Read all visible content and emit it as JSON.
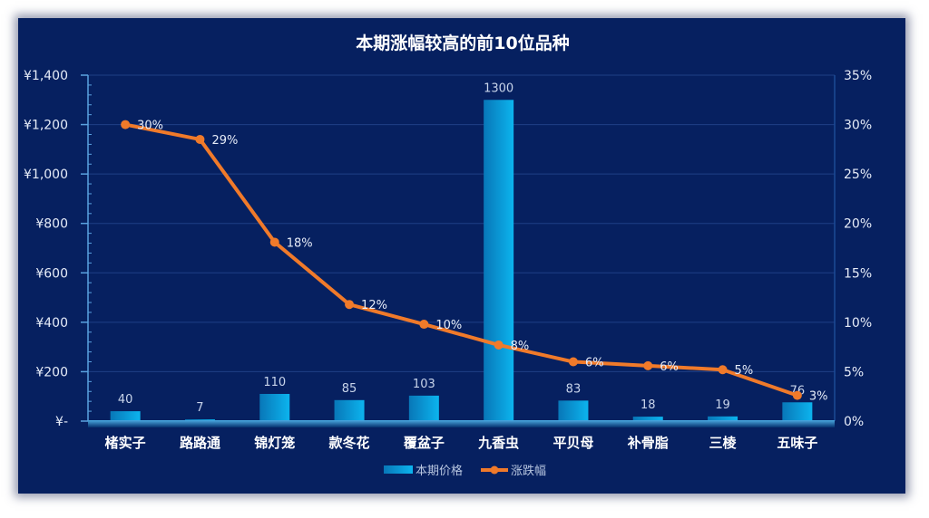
{
  "chart_data": {
    "type": "bar+line",
    "title": "本期涨幅较高的前10位品种",
    "categories": [
      "楮实子",
      "路路通",
      "锦灯笼",
      "款冬花",
      "覆盆子",
      "九香虫",
      "平贝母",
      "补骨脂",
      "三棱",
      "五味子"
    ],
    "series": [
      {
        "name": "本期价格",
        "type": "bar",
        "axis": "left",
        "values": [
          40,
          7,
          110,
          85,
          103,
          1300,
          83,
          18,
          19,
          76
        ],
        "labels": [
          "40",
          "7",
          "110",
          "85",
          "103",
          "1300",
          "83",
          "18",
          "19",
          "76"
        ],
        "color": "#0aa3e0"
      },
      {
        "name": "涨跌幅",
        "type": "line",
        "axis": "right",
        "values": [
          30.0,
          28.5,
          18.1,
          11.8,
          9.8,
          7.7,
          6.0,
          5.6,
          5.2,
          2.6
        ],
        "labels": [
          "30%",
          "29%",
          "18%",
          "12%",
          "10%",
          "8%",
          "6%",
          "6%",
          "5%",
          "3%"
        ],
        "color": "#f07a2a"
      }
    ],
    "y_left": {
      "range": [
        0,
        1400
      ],
      "ticks": [
        0,
        200,
        400,
        600,
        800,
        1000,
        1200,
        1400
      ],
      "tick_labels": [
        "¥-",
        "¥200",
        "¥400",
        "¥600",
        "¥800",
        "¥1,000",
        "¥1,200",
        "¥1,400"
      ]
    },
    "y_right": {
      "range": [
        0,
        35
      ],
      "ticks": [
        0,
        5,
        10,
        15,
        20,
        25,
        30,
        35
      ],
      "tick_labels": [
        "0%",
        "5%",
        "10%",
        "15%",
        "20%",
        "25%",
        "30%",
        "35%"
      ]
    },
    "grid": true,
    "legend": "bottom",
    "background": "#062060"
  }
}
